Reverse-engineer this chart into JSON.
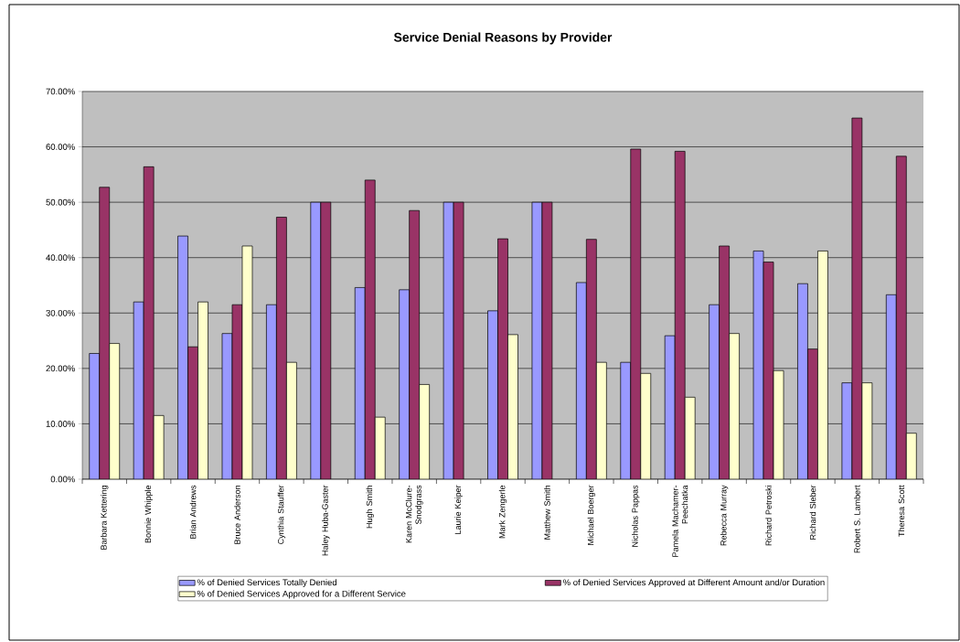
{
  "chart_data": {
    "type": "bar",
    "title": "Service Denial Reasons by Provider",
    "categories": [
      "Barbara Kettering",
      "Bonnie Whipple",
      "Brian Andrews",
      "Bruce Anderson",
      "Cynthia Stauffer",
      "Haley Huba-Gaster",
      "Hugh Smith",
      "Karen McClure-Snodgrass",
      "Laurie Keiper",
      "Mark Zengerle",
      "Matthew Smith",
      "Michael Boerger",
      "Nicholas Pappas",
      "Pamela Machamer-Peechatka",
      "Rebecca Murray",
      "Richard Petroski",
      "Richard Sleber",
      "Robert S. Lambert",
      "Theresa Scott"
    ],
    "series": [
      {
        "name": "% of Denied Services Totally Denied",
        "color": "#9999ff",
        "values": [
          22.7,
          32.0,
          43.9,
          26.3,
          31.5,
          50,
          34.6,
          34.2,
          50,
          30.4,
          50,
          35.5,
          21.1,
          25.9,
          31.5,
          41.2,
          35.3,
          17.4,
          33.3
        ]
      },
      {
        "name": "% of Denied Services Approved at Different Amount and/or Duration",
        "color": "#993366",
        "values": [
          52.7,
          56.4,
          23.9,
          31.5,
          47.3,
          50,
          54.0,
          48.5,
          50,
          43.4,
          50,
          43.3,
          59.6,
          59.2,
          42.1,
          39.2,
          23.5,
          65.2,
          58.3
        ]
      },
      {
        "name": "% of Denied Services Approved for a Different Service",
        "color": "#ffffcc",
        "values": [
          24.5,
          11.5,
          32.0,
          42.1,
          21.1,
          null,
          11.2,
          17.1,
          null,
          26.1,
          null,
          21.1,
          19.1,
          14.8,
          26.3,
          19.6,
          41.2,
          17.4,
          8.3
        ]
      }
    ],
    "ylim": [
      0,
      70
    ],
    "yticks": [
      {
        "value": 0,
        "label": "0.00%"
      },
      {
        "value": 10,
        "label": "10.00%"
      },
      {
        "value": 20,
        "label": "20.00%"
      },
      {
        "value": 30,
        "label": "30.00%"
      },
      {
        "value": 40,
        "label": "40.00%"
      },
      {
        "value": 50,
        "label": "50.00%"
      },
      {
        "value": 60,
        "label": "60.00%"
      },
      {
        "value": 70,
        "label": "70.00%"
      }
    ],
    "grid": "y",
    "legend": "bottom"
  }
}
